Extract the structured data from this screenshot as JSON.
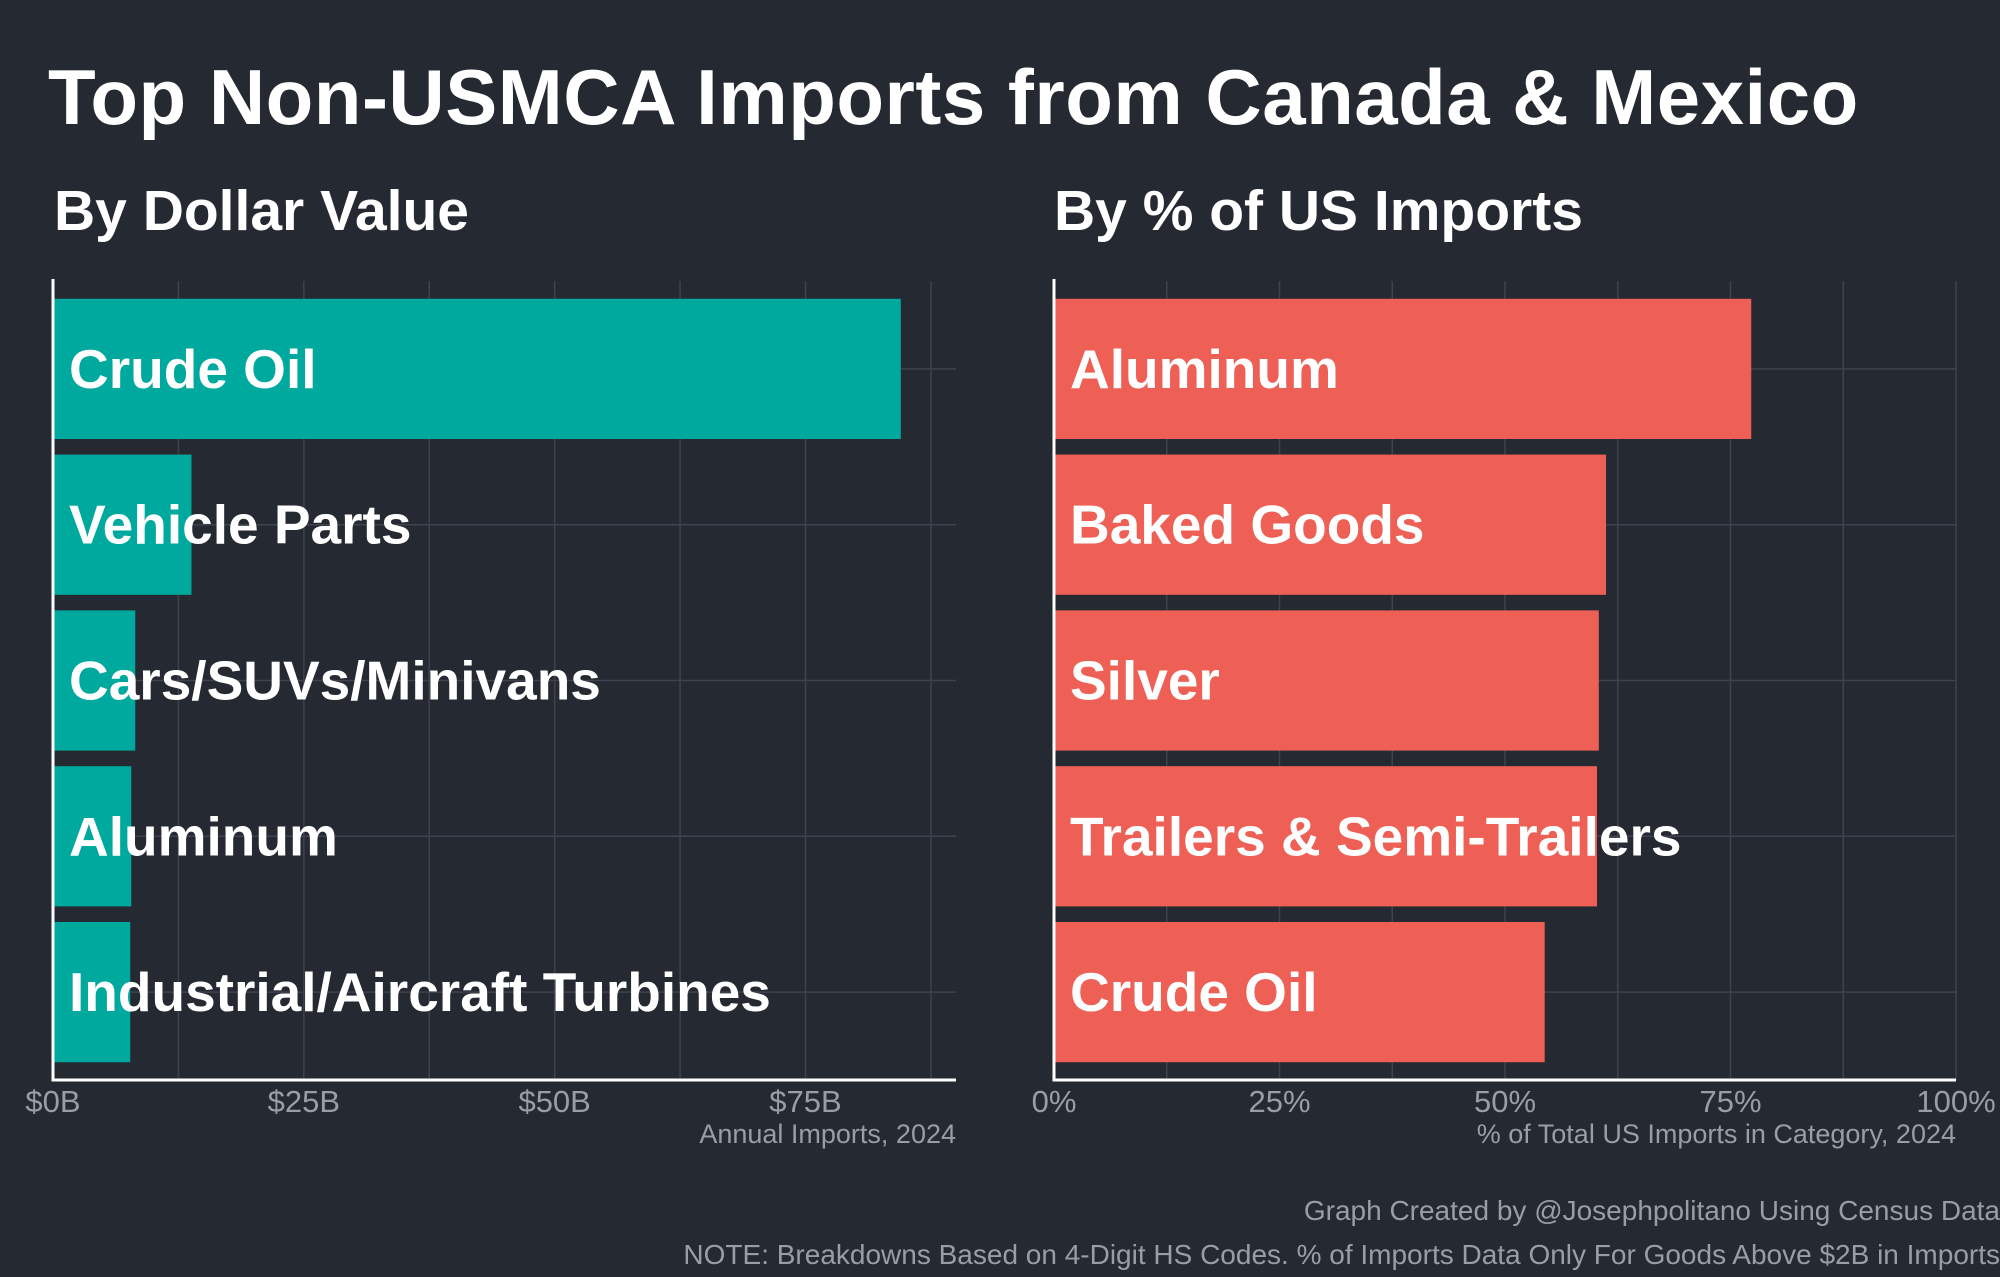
{
  "title": "Top Non-USMCA Imports from Canada & Mexico",
  "credit": "Graph Created by @Josephpolitano Using Census Data",
  "note": "NOTE: Breakdowns Based on 4-Digit HS Codes. % of Imports Data Only For Goods Above $2B in Imports",
  "colors": {
    "background": "#252932",
    "left_bars": "#00a99d",
    "right_bars": "#ee6055",
    "grid": "#3e434d",
    "axis": "#ffffff",
    "muted_text": "#9a9da3"
  },
  "chart_data": [
    {
      "type": "bar",
      "orientation": "horizontal",
      "title": "By Dollar Value",
      "xlabel": "Annual Imports, 2024",
      "categories": [
        "Crude Oil",
        "Vehicle Parts",
        "Cars/SUVs/Minivans",
        "Aluminum",
        "Industrial/Aircraft Turbines"
      ],
      "values": [
        84.5,
        13.8,
        8.2,
        7.8,
        7.7
      ],
      "unit": "USD billions",
      "xlim": [
        0,
        90
      ],
      "ticks": [
        0,
        25,
        50,
        75
      ],
      "tick_labels": [
        "$0B",
        "$25B",
        "$50B",
        "$75B"
      ],
      "grid": true
    },
    {
      "type": "bar",
      "orientation": "horizontal",
      "title": "By % of US Imports",
      "xlabel": "% of Total US Imports in Category, 2024",
      "categories": [
        "Aluminum",
        "Baked Goods",
        "Silver",
        "Trailers & Semi-Trailers",
        "Crude Oil"
      ],
      "values": [
        77.3,
        61.2,
        60.4,
        60.2,
        54.4
      ],
      "unit": "percent",
      "xlim": [
        0,
        100
      ],
      "ticks": [
        0,
        25,
        50,
        75,
        100
      ],
      "tick_labels": [
        "0%",
        "25%",
        "50%",
        "75%",
        "100%"
      ],
      "grid": true
    }
  ]
}
